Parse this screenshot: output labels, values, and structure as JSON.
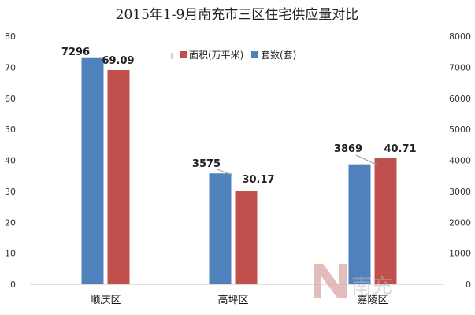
{
  "chart_data": {
    "type": "bar",
    "title": "2015年1-9月南充市三区住宅供应量对比",
    "categories": [
      "顺庆区",
      "高坪区",
      "嘉陵区"
    ],
    "series": [
      {
        "name": "套数(套)",
        "axis": "right",
        "color": "#4f81bd",
        "values": [
          7296,
          3575,
          3869
        ],
        "labels": [
          "7296",
          "3575",
          "3869"
        ]
      },
      {
        "name": "面积(万平米)",
        "axis": "left",
        "color": "#c0504d",
        "values": [
          69.09,
          30.17,
          40.71
        ],
        "labels": [
          "69.09",
          "30.17",
          "40.71"
        ]
      }
    ],
    "left_axis": {
      "min": 0,
      "max": 80,
      "step": 10,
      "ticks": [
        "0",
        "10",
        "20",
        "30",
        "40",
        "50",
        "60",
        "70",
        "80"
      ]
    },
    "right_axis": {
      "min": 0,
      "max": 8000,
      "step": 1000,
      "ticks": [
        "0",
        "1000",
        "2000",
        "3000",
        "4000",
        "5000",
        "6000",
        "7000",
        "8000"
      ]
    },
    "legend": {
      "position": "top-right",
      "items": [
        "面积(万平米)",
        "套数(套)"
      ]
    },
    "grid": false
  },
  "watermark": {
    "text": "南充"
  }
}
